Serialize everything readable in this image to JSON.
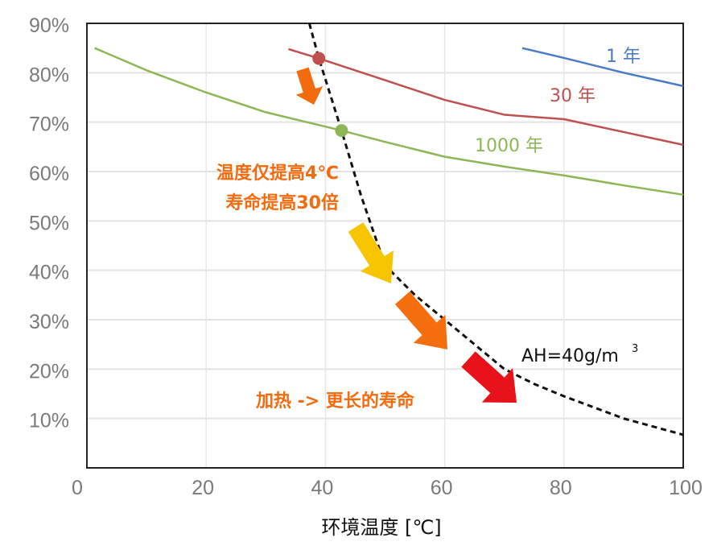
{
  "chart_data": {
    "type": "line",
    "title": "",
    "xlabel": "环境温度 [℃]",
    "ylabel": "",
    "xlim": [
      0,
      100
    ],
    "ylim": [
      0,
      90
    ],
    "x_ticks": [
      "0",
      "20",
      "40",
      "60",
      "80",
      "100"
    ],
    "y_ticks": [
      "10%",
      "20%",
      "30%",
      "40%",
      "50%",
      "60%",
      "70%",
      "80%",
      "90%"
    ],
    "grid": true,
    "series": [
      {
        "name": "1 年",
        "color": "#4a7bc4",
        "x": [
          73,
          80,
          90,
          100
        ],
        "y": [
          85,
          83,
          80,
          77.3
        ]
      },
      {
        "name": "30 年",
        "color": "#c0504d",
        "x": [
          33.8,
          38.9,
          50,
          60,
          70,
          80,
          90,
          100
        ],
        "y": [
          84.8,
          82.9,
          78.5,
          74.5,
          71.5,
          70.6,
          68,
          65.4
        ]
      },
      {
        "name": "1000 年",
        "color": "#8db654",
        "x": [
          1.3,
          10,
          20,
          30,
          42.7,
          50,
          60,
          70,
          80,
          90,
          100
        ],
        "y": [
          85,
          80.5,
          76,
          72,
          68.3,
          66,
          63,
          61,
          59.2,
          57.2,
          55.3
        ]
      },
      {
        "name": "AH=40g/m³",
        "color": "#111111",
        "dashed": true,
        "x": [
          37.3,
          38.9,
          42.7,
          46,
          50,
          55,
          60,
          65,
          70,
          75,
          80,
          90,
          100
        ],
        "y": [
          90,
          82.9,
          68.3,
          55,
          41,
          35,
          30,
          25,
          20,
          17,
          14.5,
          10,
          6.7
        ]
      }
    ],
    "markers": [
      {
        "x": 38.9,
        "y": 82.9,
        "color": "#c0504d"
      },
      {
        "x": 42.7,
        "y": 68.3,
        "color": "#8db654"
      }
    ],
    "annotations": {
      "line1": "温度仅提高4℃",
      "line2": "寿命提高30倍",
      "heating": "加热 -> 更长的寿命",
      "ah_label": "AH=40g/m",
      "ah_sup": "3"
    },
    "arrow_colors": [
      "#f26b0f",
      "#f7c400",
      "#f56e0e",
      "#e8121a"
    ],
    "annotation_color": "#f26b0f"
  }
}
